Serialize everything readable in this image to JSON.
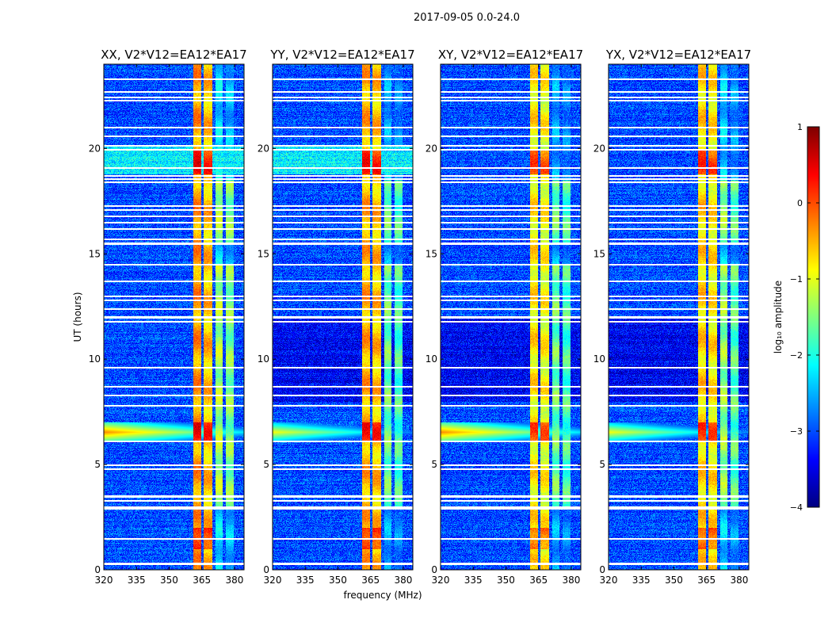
{
  "chart_data": {
    "type": "heatmap",
    "title": "2017-09-05 0.0-24.0",
    "xlabel": "frequency (MHz)",
    "ylabel": "UT (hours)",
    "xlim": [
      320,
      384.4
    ],
    "ylim": [
      0,
      24
    ],
    "xticks": [
      "320",
      "335",
      "350",
      "365",
      "380"
    ],
    "xtick_values": [
      320,
      335,
      350,
      365,
      380
    ],
    "yticks": [
      "0",
      "5",
      "10",
      "15",
      "20"
    ],
    "ytick_values": [
      0,
      5,
      10,
      15,
      20
    ],
    "panels": [
      {
        "title": "XX, V2*V12=EA12*EA17",
        "band_levels": [
          -0.4,
          -0.6,
          -1.3,
          -1.5
        ]
      },
      {
        "title": "YY, V2*V12=EA12*EA17",
        "band_levels": [
          -0.5,
          -0.6,
          -1.6,
          -1.8
        ]
      },
      {
        "title": "XY, V2*V12=EA12*EA17",
        "band_levels": [
          -0.8,
          -0.9,
          -1.6,
          -1.8
        ]
      },
      {
        "title": "YX, V2*V12=EA12*EA17",
        "band_levels": [
          -0.7,
          -0.8,
          -1.4,
          -1.7
        ]
      }
    ],
    "bands_mhz": [
      [
        361,
        364.5
      ],
      [
        365.5,
        369.5
      ],
      [
        371,
        374.5
      ],
      [
        376,
        379.5
      ]
    ],
    "background_level": -3.0,
    "flagged_ut": [
      23.3,
      22.7,
      22.45,
      22.3,
      21.0,
      20.6,
      20.15,
      19.95,
      19.1,
      18.7,
      18.55,
      18.4,
      17.3,
      17.1,
      16.8,
      16.5,
      16.2,
      15.7,
      15.5,
      14.5,
      13.7,
      13.0,
      12.8,
      12.4,
      12.0,
      11.8,
      9.6,
      8.7,
      8.3,
      7.8,
      6.1,
      5.0,
      4.8,
      3.5,
      3.3,
      3.0,
      2.9,
      1.5,
      0.3
    ],
    "rfi_ut_range": [
      6.1,
      7.0
    ],
    "rfi_level": -0.3,
    "colorbar": {
      "label": "log₁₀ amplitude",
      "range": [
        -4,
        1
      ],
      "ticks": [
        "1",
        "0",
        "−1",
        "−2",
        "−3",
        "−4"
      ],
      "tick_values": [
        1,
        0,
        -1,
        -2,
        -3,
        -4
      ],
      "colormap": "jet"
    }
  }
}
